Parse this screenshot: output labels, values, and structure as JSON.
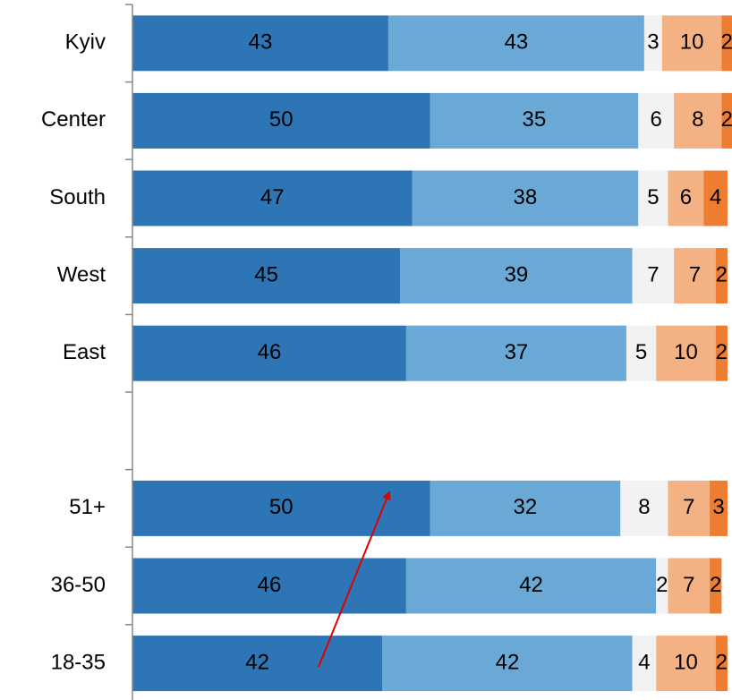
{
  "chart_data": {
    "type": "stacked-bar-horizontal",
    "categories": [
      "Kyiv",
      "Center",
      "South",
      "West",
      "East",
      null,
      "51+",
      "36-50",
      "18-35"
    ],
    "series": [
      {
        "color": "#2e75b6",
        "values": [
          43,
          50,
          47,
          45,
          46,
          null,
          50,
          46,
          42
        ]
      },
      {
        "color": "#6aa8d5",
        "values": [
          43,
          35,
          38,
          39,
          37,
          null,
          32,
          42,
          42
        ]
      },
      {
        "color": "#f2f2f2",
        "values": [
          3,
          6,
          5,
          7,
          5,
          null,
          8,
          2,
          4
        ]
      },
      {
        "color": "#f4b183",
        "values": [
          10,
          8,
          6,
          7,
          10,
          null,
          7,
          7,
          10
        ]
      },
      {
        "color": "#ed7d31",
        "values": [
          2,
          2,
          4,
          2,
          2,
          null,
          3,
          2,
          2
        ]
      }
    ],
    "xlim": [
      0,
      100
    ]
  }
}
